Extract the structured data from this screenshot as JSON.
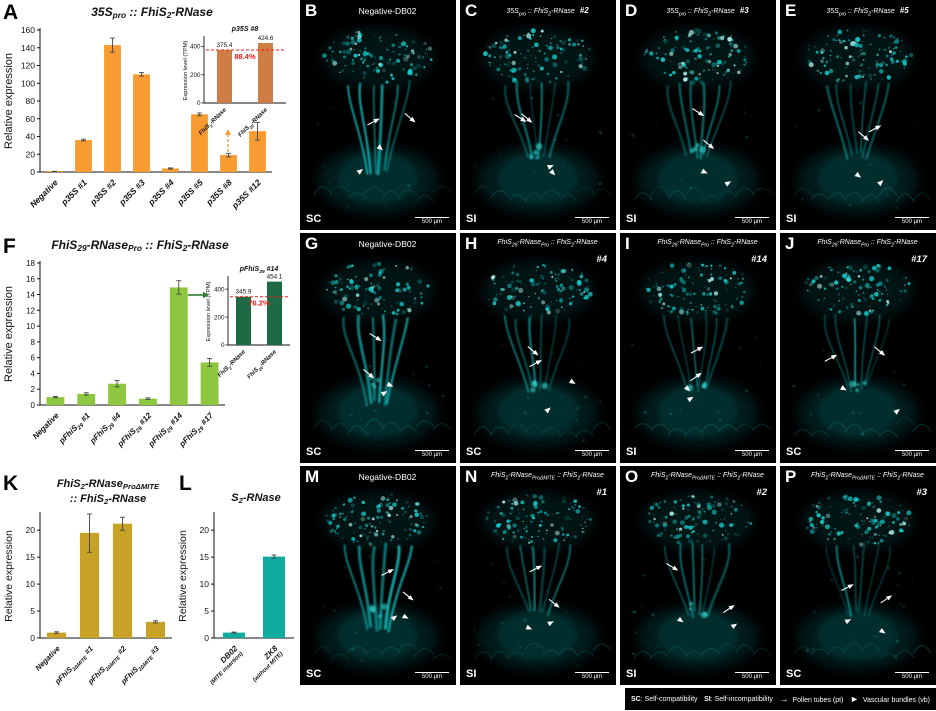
{
  "chart_data": [
    {
      "panel_letter": "A",
      "type": "bar",
      "title_lines": [
        "35S~pro~ :: FhiS~2~-RNase"
      ],
      "ylabel": "Relative expression",
      "ylim": [
        0,
        160
      ],
      "yticks": [
        0,
        20,
        40,
        60,
        80,
        100,
        120,
        140,
        160
      ],
      "categories": [
        "Negative",
        "p35S #1",
        "p35S #2",
        "p35S #3",
        "p35S #4",
        "p35S #5",
        "p35S #8",
        "p35S #12"
      ],
      "values": [
        0.5,
        36,
        143,
        110,
        4,
        65,
        19,
        46
      ],
      "errors": [
        0.3,
        1,
        8,
        2,
        0.6,
        1.5,
        2,
        10
      ],
      "bar_color": "#F89B30",
      "grid": false,
      "legend_position": "none",
      "inset": {
        "title": "p35S #8",
        "ylabel": "Expression level (TPM)",
        "ylim": [
          0,
          460
        ],
        "yticks": [
          0,
          200,
          400
        ],
        "categories": [
          "FhiS~2~-RNase",
          "FhiS~29~-RNase"
        ],
        "values": [
          375.4,
          424.6
        ],
        "value_labels": [
          "375.4",
          "424.6"
        ],
        "percent_label": "88.4%",
        "ref_value": 375.4,
        "bar_color": "#CE7D44",
        "accent_color": "#F21818"
      }
    },
    {
      "panel_letter": "F",
      "type": "bar",
      "title_lines": [
        "FhiS~29~-RNase~Pro~ :: FhiS~2~-RNase"
      ],
      "ylabel": "Relative expression",
      "ylim": [
        0,
        18
      ],
      "yticks": [
        0,
        2,
        4,
        6,
        8,
        10,
        12,
        14,
        16,
        18
      ],
      "categories": [
        "Negative",
        "pFhiS~29~ #1",
        "pFhiS~29~ #4",
        "pFhiS~29~ #12",
        "pFhiS~29~ #14",
        "pFhiS~29~ #17"
      ],
      "values": [
        1,
        1.4,
        2.7,
        0.8,
        14.9,
        5.4
      ],
      "errors": [
        0.08,
        0.15,
        0.4,
        0.1,
        0.85,
        0.5
      ],
      "bar_color": "#8DC63F",
      "grid": false,
      "legend_position": "none",
      "inset": {
        "title": "pFhiS~29~ #14",
        "ylabel": "Expression level (TPM)",
        "ylim": [
          0,
          480
        ],
        "yticks": [
          0,
          200,
          400
        ],
        "categories": [
          "FhiS~2~-RNase",
          "FhiS~29~-RNase"
        ],
        "values": [
          345.9,
          454.1
        ],
        "value_labels": [
          "345.9",
          "454.1"
        ],
        "percent_label": "76.2%",
        "ref_value": 345.9,
        "bar_color": "#1C6B45",
        "accent_color": "#F21818"
      }
    },
    {
      "panel_letter": "K",
      "type": "bar",
      "title_lines": [
        "FhiS~2~-RNase~ProΔMITE~",
        ":: FhiS~2~-RNase"
      ],
      "ylabel": "Relative expression",
      "ylim": [
        0,
        23
      ],
      "yticks": [
        0,
        5,
        10,
        15,
        20
      ],
      "categories": [
        "Negative",
        "pFhiS~2ΔMITE~ #1",
        "pFhiS~2ΔMITE~ #2",
        "pFhiS~2ΔMITE~ #3"
      ],
      "values": [
        1,
        19.5,
        21.2,
        3
      ],
      "errors": [
        0.15,
        3.6,
        1.2,
        0.2
      ],
      "bar_color": "#C8A227",
      "grid": false,
      "legend_position": "none"
    },
    {
      "panel_letter": "L",
      "type": "bar",
      "title_lines": [
        "S~2~-RNase"
      ],
      "ylabel": "Relative expression",
      "ylim": [
        0,
        23
      ],
      "yticks": [
        0,
        5,
        10,
        15,
        20
      ],
      "categories": [
        "DB02|(MITE insertion)",
        "ZK8|(without MITE)"
      ],
      "values": [
        1,
        15.1
      ],
      "errors": [
        0.1,
        0.3
      ],
      "bar_color": "#0FAC9F",
      "grid": false,
      "legend_position": "none"
    }
  ],
  "micrographs": [
    {
      "panel_letter": "B",
      "title": "Negative-DB02",
      "line_number": "",
      "number_inline": false,
      "status": "SC"
    },
    {
      "panel_letter": "C",
      "title": "35S~pro~ :: FhiS~2~-RNase",
      "line_number": "#2",
      "number_inline": true,
      "status": "SI"
    },
    {
      "panel_letter": "D",
      "title": "35S~pro~ :: FhiS~2~-RNase",
      "line_number": "#3",
      "number_inline": true,
      "status": "SI"
    },
    {
      "panel_letter": "E",
      "title": "35S~pro~ :: FhiS~2~-RNase",
      "line_number": "#5",
      "number_inline": true,
      "status": "SI"
    },
    {
      "panel_letter": "G",
      "title": "Negative-DB02",
      "line_number": "",
      "number_inline": false,
      "status": "SC"
    },
    {
      "panel_letter": "H",
      "title": "FhiS~29~-RNase~Pro~ :: FhiS~2~-RNase",
      "line_number": "#4",
      "number_inline": false,
      "status": "SC"
    },
    {
      "panel_letter": "I",
      "title": "FhiS~29~-RNase~Pro~ :: FhiS~2~-RNase",
      "line_number": "#14",
      "number_inline": false,
      "status": "SI"
    },
    {
      "panel_letter": "J",
      "title": "FhiS~29~-RNase~Pro~ :: FhiS~2~-RNase",
      "line_number": "#17",
      "number_inline": false,
      "status": "SC"
    },
    {
      "panel_letter": "M",
      "title": "Negative-DB02",
      "line_number": "",
      "number_inline": false,
      "status": "SC"
    },
    {
      "panel_letter": "N",
      "title": "FhiS~2~-RNase~ProΔMITE~ :: FhiS~2~-RNase",
      "line_number": "#1",
      "number_inline": false,
      "status": "SI"
    },
    {
      "panel_letter": "O",
      "title": "FhiS~2~-RNase~ProΔMITE~ :: FhiS~2~-RNase",
      "line_number": "#2",
      "number_inline": false,
      "status": "SI"
    },
    {
      "panel_letter": "P",
      "title": "FhiS~2~-RNase~ProΔMITE~ :: FhiS~2~-RNase",
      "line_number": "#3",
      "number_inline": false,
      "status": "SC"
    }
  ],
  "scale_bar_label": "500 µm",
  "micro_colors": {
    "background": "#000000",
    "fluorescence": "#16CFCF",
    "annotation": "#FFFFFF"
  },
  "legend": {
    "sc_key": "SC",
    "sc_label": ": Self-compatibility",
    "si_key": "SI",
    "si_label": ": Self-incompatibility",
    "pt_icon": "→",
    "pt_label": "Pollen tubes (pt)",
    "vb_icon": "►",
    "vb_label": "Vascular bundles (vb)"
  }
}
